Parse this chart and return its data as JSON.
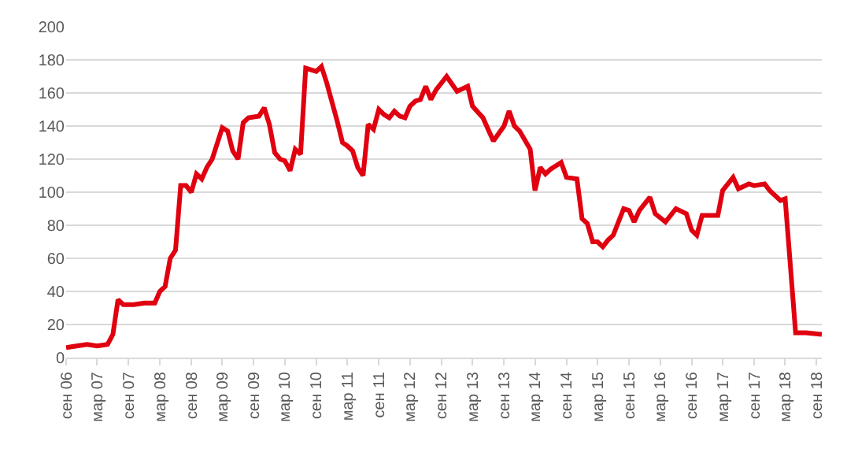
{
  "chart_data": {
    "type": "line",
    "x": [
      "2006-09",
      "2006-11",
      "2007-01",
      "2007-03",
      "2007-05",
      "2007-06",
      "2007-07",
      "2007-08",
      "2007-10",
      "2007-12",
      "2008-02",
      "2008-03",
      "2008-04",
      "2008-05",
      "2008-06",
      "2008-07",
      "2008-08",
      "2008-09",
      "2008-10",
      "2008-11",
      "2008-12",
      "2009-01",
      "2009-03",
      "2009-04",
      "2009-05",
      "2009-06",
      "2009-07",
      "2009-08",
      "2009-10",
      "2009-11",
      "2009-12",
      "2010-01",
      "2010-02",
      "2010-03",
      "2010-04",
      "2010-05",
      "2010-06",
      "2010-07",
      "2010-08",
      "2010-09",
      "2010-10",
      "2010-11",
      "2011-01",
      "2011-02",
      "2011-03",
      "2011-04",
      "2011-05",
      "2011-06",
      "2011-07",
      "2011-08",
      "2011-09",
      "2011-10",
      "2011-11",
      "2011-12",
      "2012-01",
      "2012-02",
      "2012-03",
      "2012-04",
      "2012-05",
      "2012-06",
      "2012-07",
      "2012-08",
      "2012-10",
      "2012-12",
      "2013-02",
      "2013-03",
      "2013-05",
      "2013-07",
      "2013-09",
      "2013-10",
      "2013-11",
      "2013-12",
      "2014-02",
      "2014-03",
      "2014-04",
      "2014-05",
      "2014-06",
      "2014-08",
      "2014-09",
      "2014-11",
      "2014-12",
      "2015-01",
      "2015-02",
      "2015-03",
      "2015-04",
      "2015-05",
      "2015-06",
      "2015-08",
      "2015-09",
      "2015-10",
      "2015-11",
      "2016-01",
      "2016-02",
      "2016-04",
      "2016-06",
      "2016-08",
      "2016-09",
      "2016-10",
      "2016-11",
      "2017-02",
      "2017-03",
      "2017-05",
      "2017-06",
      "2017-08",
      "2017-09",
      "2017-11",
      "2017-12",
      "2018-02",
      "2018-03",
      "2018-05",
      "2018-07",
      "2018-10"
    ],
    "series": [
      {
        "color": "#e0000f",
        "values": [
          6,
          7,
          8,
          7,
          8,
          14,
          35,
          32,
          32,
          33,
          33,
          40,
          43,
          60,
          65,
          104,
          104,
          100,
          111,
          108,
          115,
          120,
          139,
          137,
          125,
          120,
          142,
          145,
          146,
          151,
          141,
          124,
          120,
          119,
          113,
          126,
          123,
          175,
          174,
          173,
          176,
          166,
          143,
          130,
          128,
          125,
          115,
          110,
          141,
          138,
          150,
          147,
          145,
          149,
          146,
          145,
          152,
          155,
          156,
          164,
          156,
          162,
          170,
          161,
          164,
          152,
          145,
          131,
          140,
          149,
          140,
          137,
          126,
          101,
          115,
          111,
          114,
          118,
          109,
          108,
          84,
          81,
          70,
          70,
          67,
          71,
          74,
          90,
          89,
          82,
          89,
          97,
          87,
          82,
          90,
          87,
          77,
          74,
          86,
          86,
          101,
          109,
          102,
          105,
          104,
          105,
          101,
          95,
          96,
          15,
          15,
          14
        ]
      }
    ],
    "xlim": [
      "2006-09",
      "2018-10"
    ],
    "xticks": [
      {
        "value": "2006-09",
        "label": "сен 06"
      },
      {
        "value": "2007-03",
        "label": "мар 07"
      },
      {
        "value": "2007-09",
        "label": "сен 07"
      },
      {
        "value": "2008-03",
        "label": "мар 08"
      },
      {
        "value": "2008-09",
        "label": "сен 08"
      },
      {
        "value": "2009-03",
        "label": "мар 09"
      },
      {
        "value": "2009-09",
        "label": "сен 09"
      },
      {
        "value": "2010-03",
        "label": "мар 10"
      },
      {
        "value": "2010-09",
        "label": "сен 10"
      },
      {
        "value": "2011-03",
        "label": "мар 11"
      },
      {
        "value": "2011-09",
        "label": "сен 11"
      },
      {
        "value": "2012-03",
        "label": "мар 12"
      },
      {
        "value": "2012-09",
        "label": "сен 12"
      },
      {
        "value": "2013-03",
        "label": "мар 13"
      },
      {
        "value": "2013-09",
        "label": "сен 13"
      },
      {
        "value": "2014-03",
        "label": "мар 14"
      },
      {
        "value": "2014-09",
        "label": "сен 14"
      },
      {
        "value": "2015-03",
        "label": "мар 15"
      },
      {
        "value": "2015-09",
        "label": "сен 15"
      },
      {
        "value": "2016-03",
        "label": "мар 16"
      },
      {
        "value": "2016-09",
        "label": "сен 16"
      },
      {
        "value": "2017-03",
        "label": "мар 17"
      },
      {
        "value": "2017-09",
        "label": "сен 17"
      },
      {
        "value": "2018-03",
        "label": "мар 18"
      },
      {
        "value": "2018-09",
        "label": "сен 18"
      }
    ],
    "ylim": [
      0,
      200
    ],
    "yticks": [
      0,
      20,
      40,
      60,
      80,
      100,
      120,
      140,
      160,
      180,
      200
    ],
    "grid": "y"
  }
}
